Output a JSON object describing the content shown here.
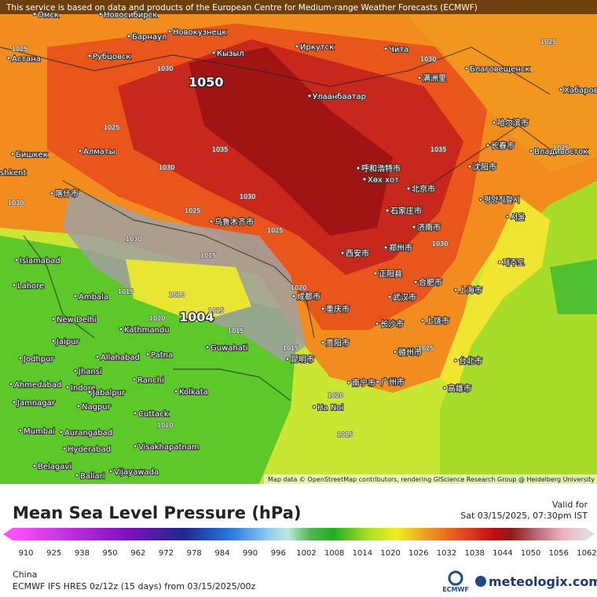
{
  "map": {
    "attribution_top": "This service is based on data and products of the European Centre for Medium-range Weather Forecasts (ECMWF)",
    "attribution_bottom": "Map data © OpenStreetMap contributors, rendering GIScience Research Group @ Heidelberg University",
    "cities": [
      "Омск",
      "Новосибирск",
      "Барнаул",
      "Новокузнецк",
      "Астана",
      "Рубцовск",
      "Кызыл",
      "Иркутск",
      "Чита",
      "Благовещенск",
      "Хабаровск",
      "Улаанбаатар",
      "满洲里",
      "哈尔滨市",
      "长春市",
      "Владивосток",
      "Бишкек",
      "Алматы",
      "shkent",
      "呼和浩特市",
      "Хөх хот",
      "北京市",
      "沈阳市",
      "평양직할시",
      "서울",
      "石家庄市",
      "济南市",
      "乌鲁木齐市",
      "喀什市",
      "Islamabad",
      "Lahore",
      "Ambala",
      "New Delhi",
      "西安市",
      "郑州市",
      "正阳县",
      "合肥市",
      "上海市",
      "武汉市",
      "成都市",
      "重庆市",
      "Kathmandu",
      "长沙市",
      "上饶市",
      "Jaipur",
      "Guwahati",
      "Allahabad",
      "Patna",
      "贵阳市",
      "昆明市",
      "赣州市",
      "台北市",
      "Jodhpur",
      "Jhansi",
      "Ranchi",
      "广州市",
      "南宁市",
      "高雄市",
      "Ahmedabad",
      "Indore",
      "Jabalpur",
      "Kolkata",
      "Ha Noi",
      "Jamnagar",
      "Nagpur",
      "Cuttack",
      "Mumbai",
      "Aurangabad",
      "Hyderabad",
      "Visakhapatnam",
      "Belagavi",
      "Ballari",
      "Vijayawada",
      "제주도"
    ],
    "pressure_highlights": [
      "1050",
      "1004"
    ],
    "pressure_labels": [
      "1025",
      "1030",
      "1025",
      "1030",
      "1025",
      "1030",
      "1035",
      "1030",
      "1025",
      "1025",
      "1030",
      "1015",
      "1015",
      "1010",
      "1020",
      "1015",
      "1015",
      "1015",
      "1020",
      "1030",
      "1025",
      "1020",
      "1015",
      "1010",
      "1035",
      "1025",
      "1030"
    ]
  },
  "legend": {
    "title": "Mean Sea Level Pressure (hPa)",
    "valid_label": "Valid for",
    "valid_time": "Sat 03/15/2025, 07:30pm IST",
    "ticks": [
      "910",
      "925",
      "938",
      "950",
      "962",
      "972",
      "978",
      "984",
      "990",
      "996",
      "1002",
      "1008",
      "1014",
      "1020",
      "1026",
      "1032",
      "1038",
      "1044",
      "1050",
      "1056",
      "1062"
    ]
  },
  "footer": {
    "region": "China",
    "model": "ECMWF IFS HRES 0z/12z (15 days) from 03/15/2025/00z",
    "ecmwf": "ECMWF",
    "brand": "meteologix.com"
  }
}
